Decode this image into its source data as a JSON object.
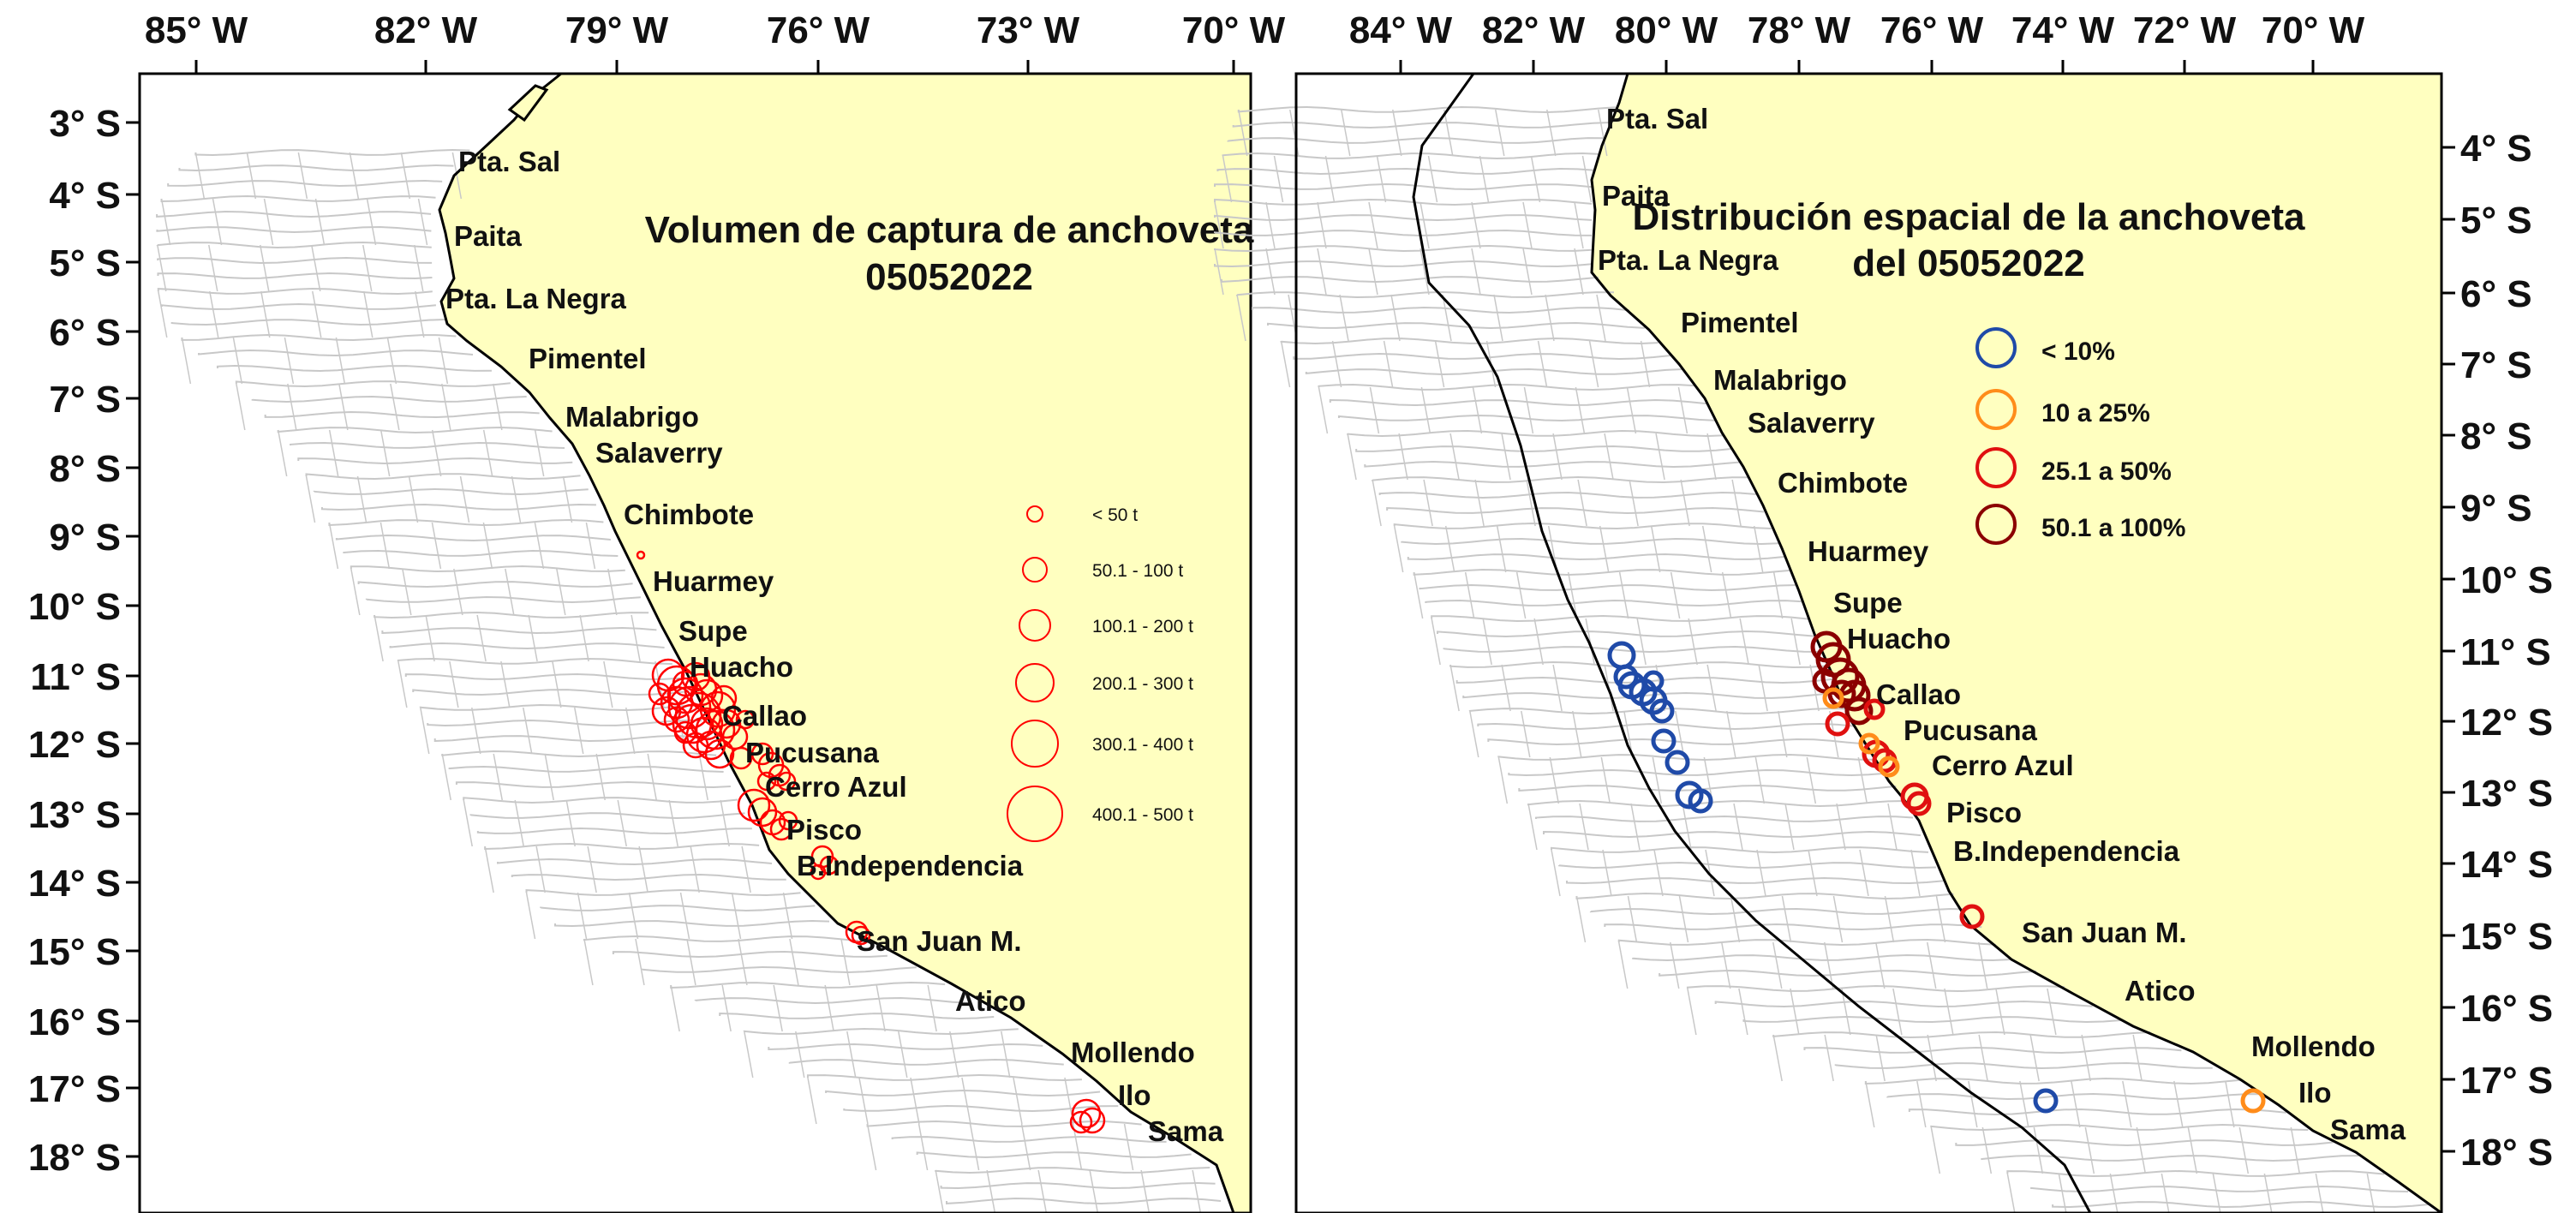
{
  "left_map": {
    "title_line1": "Volumen de captura de anchoveta",
    "title_line2": "05052022",
    "lon_ticks": [
      "85° W",
      "82° W",
      "79° W",
      "76° W",
      "73° W",
      "70° W"
    ],
    "lat_ticks": [
      "3° S",
      "4° S",
      "5° S",
      "6° S",
      "7° S",
      "8° S",
      "9° S",
      "10° S",
      "11° S",
      "12° S",
      "13° S",
      "14° S",
      "15° S",
      "16° S",
      "17° S",
      "18° S"
    ],
    "places": [
      "Pta. Sal",
      "Paita",
      "Pta. La Negra",
      "Pimentel",
      "Malabrigo",
      "Salaverry",
      "Chimbote",
      "Huarmey",
      "Supe",
      "Huacho",
      "Callao",
      "Pucusana",
      "Cerro Azul",
      "Pisco",
      "B.Independencia",
      "San Juan M.",
      "Atico",
      "Mollendo",
      "Ilo",
      "Sama"
    ],
    "legend": [
      "< 50 t",
      "50.1 - 100 t",
      "100.1 - 200 t",
      "200.1 - 300 t",
      "300.1 - 400 t",
      "400.1 - 500 t"
    ],
    "catch_color": "#ff0000"
  },
  "right_map": {
    "title_line1": "Distribución espacial de la anchoveta",
    "title_line2": "del 05052022",
    "lon_ticks": [
      "84° W",
      "82° W",
      "80° W",
      "78° W",
      "76° W",
      "74° W",
      "72° W",
      "70° W"
    ],
    "lat_ticks": [
      "4° S",
      "5° S",
      "6° S",
      "7° S",
      "8° S",
      "9° S",
      "10° S",
      "11° S",
      "12° S",
      "13° S",
      "14° S",
      "15° S",
      "16° S",
      "17° S",
      "18° S"
    ],
    "places": [
      "Pta. Sal",
      "Paita",
      "Pta. La Negra",
      "Pimentel",
      "Malabrigo",
      "Salaverry",
      "Chimbote",
      "Huarmey",
      "Supe",
      "Huacho",
      "Callao",
      "Pucusana",
      "Cerro Azul",
      "Pisco",
      "B.Independencia",
      "San Juan M.",
      "Atico",
      "Mollendo",
      "Ilo",
      "Sama"
    ],
    "legend": [
      {
        "label": "< 10%",
        "color": "#1f4aa8"
      },
      {
        "label": "10 a 25%",
        "color": "#ff8c1a"
      },
      {
        "label": "25.1 a 50%",
        "color": "#e01010"
      },
      {
        "label": "50.1 a 100%",
        "color": "#8b0000"
      }
    ]
  },
  "colors": {
    "land": "#ffffc0",
    "grid": "#c8c8c8",
    "coast": "#000000"
  }
}
